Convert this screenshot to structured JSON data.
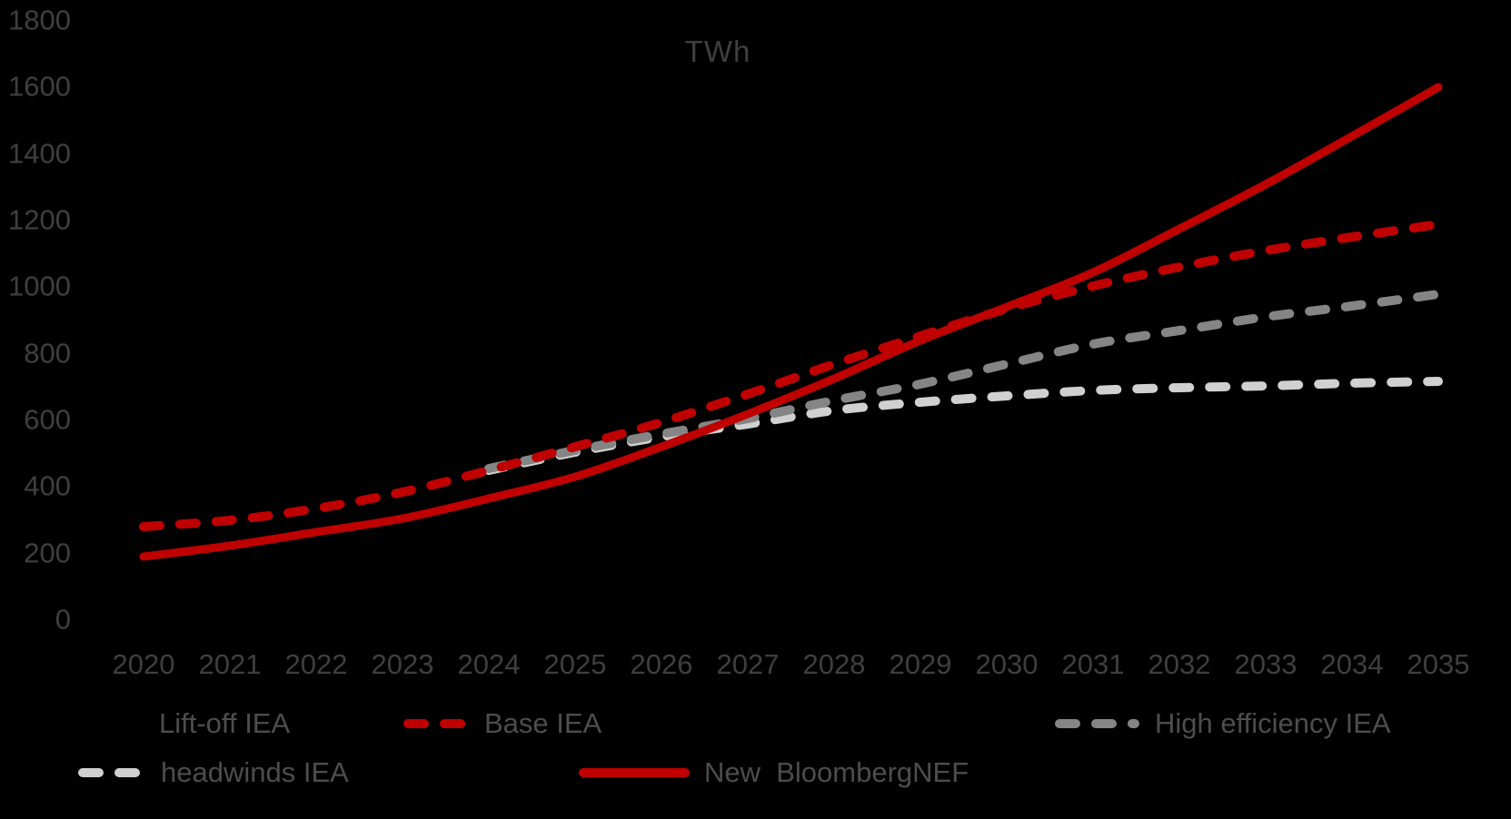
{
  "chart": {
    "title": "TWh"
  },
  "chart_data": {
    "type": "line",
    "title": "TWh",
    "x": [
      2020,
      2021,
      2022,
      2023,
      2024,
      2025,
      2026,
      2027,
      2028,
      2029,
      2030,
      2031,
      2032,
      2033,
      2034,
      2035
    ],
    "xlabel": "",
    "ylabel": "TWh",
    "ylim": [
      0,
      1800
    ],
    "yticks": [
      0,
      200,
      400,
      600,
      800,
      1000,
      1200,
      1400,
      1600,
      1800
    ],
    "grid": false,
    "background": "#000000",
    "legend_position": "bottom",
    "series": [
      {
        "name": "Lift-off IEA",
        "color": "#000000",
        "style": "dashed",
        "z": 0,
        "visible_line": false,
        "values": []
      },
      {
        "name": "Base IEA",
        "color": "#c00000",
        "style": "dashed",
        "z": 4,
        "visible_line": true,
        "values": [
          280,
          300,
          335,
          385,
          450,
          520,
          595,
          680,
          770,
          855,
          935,
          1005,
          1060,
          1110,
          1150,
          1190
        ]
      },
      {
        "name": "High efficiency IEA",
        "color": "#858585",
        "style": "dashed",
        "z": 2,
        "visible_line": true,
        "values": [
          null,
          null,
          null,
          null,
          455,
          510,
          560,
          605,
          660,
          710,
          770,
          830,
          870,
          910,
          945,
          980
        ]
      },
      {
        "name": "headwinds IEA",
        "color": "#d0d0d0",
        "style": "dashed",
        "z": 1,
        "visible_line": true,
        "values": [
          null,
          null,
          null,
          null,
          450,
          505,
          550,
          590,
          630,
          655,
          675,
          690,
          698,
          704,
          711,
          718
        ]
      },
      {
        "name": "New  BloombergNEF",
        "color": "#c00000",
        "style": "solid",
        "z": 3,
        "visible_line": true,
        "values": [
          190,
          225,
          265,
          305,
          365,
          430,
          520,
          620,
          725,
          840,
          940,
          1045,
          1175,
          1310,
          1455,
          1600
        ]
      }
    ]
  },
  "legend": {
    "items": [
      {
        "label": "Lift-off IEA"
      },
      {
        "label": "Base IEA"
      },
      {
        "label": "High efficiency IEA"
      },
      {
        "label": "headwinds IEA"
      },
      {
        "label": "New  BloombergNEF"
      }
    ]
  },
  "colors": {
    "accent_red": "#c00000",
    "series_dark_gray": "#858585",
    "series_light_gray": "#d0d0d0",
    "text_gray": "#3f3f3f",
    "background": "#000000"
  }
}
